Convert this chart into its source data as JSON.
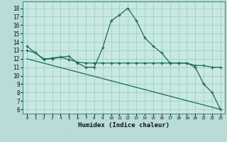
{
  "xlabel": "Humidex (Indice chaleur)",
  "bg_color": "#b8ddd8",
  "plot_bg_color": "#c8e8e2",
  "grid_color": "#a0ccc6",
  "line_color": "#1a6b5a",
  "x_ticks": [
    0,
    1,
    2,
    3,
    4,
    5,
    6,
    7,
    8,
    9,
    10,
    11,
    12,
    13,
    14,
    15,
    16,
    17,
    18,
    19,
    20,
    21,
    22,
    23
  ],
  "y_ticks": [
    6,
    7,
    8,
    9,
    10,
    11,
    12,
    13,
    14,
    15,
    16,
    17,
    18
  ],
  "ylim": [
    5.5,
    18.8
  ],
  "xlim": [
    -0.5,
    23.5
  ],
  "line1_x": [
    0,
    1,
    2,
    3,
    4,
    5,
    6,
    7,
    8,
    9,
    10,
    11,
    12,
    13,
    14,
    15,
    16,
    17,
    18,
    19,
    20,
    21,
    22,
    23
  ],
  "line1_y": [
    13.5,
    12.7,
    12.0,
    12.0,
    12.2,
    12.3,
    11.5,
    11.0,
    11.0,
    13.3,
    16.5,
    17.2,
    18.0,
    16.5,
    14.5,
    13.5,
    12.7,
    11.5,
    11.5,
    11.5,
    11.0,
    9.0,
    8.0,
    6.0
  ],
  "line2_x": [
    0,
    1,
    2,
    3,
    4,
    5,
    6,
    7,
    8,
    9,
    10,
    11,
    12,
    13,
    14,
    15,
    16,
    17,
    18,
    19,
    20,
    21,
    22,
    23
  ],
  "line2_y": [
    13.0,
    12.7,
    11.9,
    12.1,
    12.2,
    11.9,
    11.6,
    11.5,
    11.5,
    11.5,
    11.5,
    11.5,
    11.5,
    11.5,
    11.5,
    11.5,
    11.5,
    11.5,
    11.5,
    11.5,
    11.2,
    11.2,
    11.0,
    11.0
  ],
  "line3_x": [
    0,
    23
  ],
  "line3_y": [
    12.0,
    6.0
  ]
}
